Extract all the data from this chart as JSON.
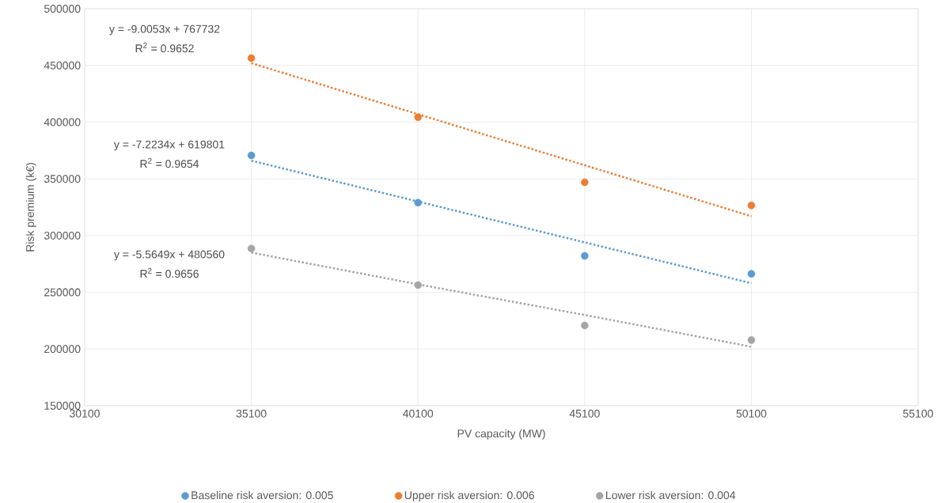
{
  "chart_data": {
    "type": "scatter",
    "xlabel": "PV capacity (MW)",
    "ylabel": "Risk premium (k€)",
    "x": [
      35100,
      40100,
      45100,
      50100
    ],
    "series": [
      {
        "name": "Baseline risk aversion: 0.005",
        "color": "#5b9bd5",
        "values": [
          370700,
          329000,
          282100,
          266300
        ],
        "marker": "circle"
      },
      {
        "name": "Upper risk aversion: 0.006",
        "color": "#ed7d31",
        "values": [
          456400,
          404300,
          347000,
          326600
        ],
        "marker": "circle"
      },
      {
        "name": "Lower risk aversion: 0.004",
        "color": "#a5a5a5",
        "values": [
          288600,
          256400,
          220700,
          207900
        ],
        "marker": "circle"
      },
      {
        "type": "line",
        "color": "#ed7d31",
        "values": [
          452000,
          407000,
          362000,
          317000
        ],
        "line_style": "dotted",
        "marker": "none"
      },
      {
        "type": "line",
        "color": "#5b9bd5",
        "values": [
          366000,
          330000,
          294000,
          258000
        ],
        "line_style": "dotted",
        "marker": "none"
      },
      {
        "type": "line",
        "color": "#a5a5a5",
        "values": [
          285000,
          257000,
          230000,
          202000
        ],
        "line_style": "dotted",
        "marker": "none"
      }
    ],
    "xlim": [
      30100,
      55100
    ],
    "xticks": [
      30100,
      35100,
      40100,
      45100,
      50100,
      55100
    ],
    "ylim": [
      150000,
      500000
    ],
    "yticks": [
      150000,
      200000,
      250000,
      300000,
      350000,
      400000,
      450000,
      500000
    ],
    "grid": true,
    "legend": "bottom",
    "annotations": [
      "y = -9.0053x + 767732",
      "R$^{2}$ = 0.9652",
      "y = -7.2234x + 619801",
      "R$^{2}$ = 0.9654",
      "y = -5.5649x + 480560",
      "R$^{2}$ = 0.9656"
    ]
  }
}
